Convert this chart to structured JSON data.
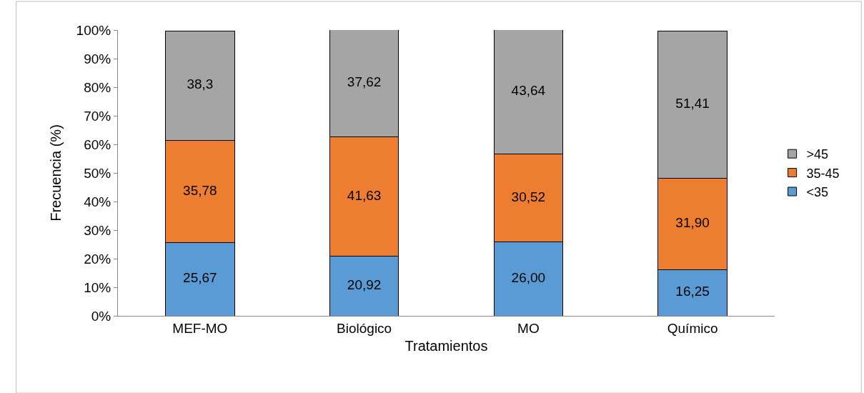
{
  "chart_data": {
    "type": "bar",
    "stacked": true,
    "xlabel": "Tratamientos",
    "ylabel": "Frecuencia (%)",
    "categories": [
      "MEF-MO",
      "Biológico",
      "MO",
      "Químico"
    ],
    "series": [
      {
        "name": "<35",
        "color": "#5b9bd5",
        "values": [
          25.67,
          20.92,
          26.0,
          16.25
        ],
        "value_labels": [
          "25,67",
          "20,92",
          "26,00",
          "16,25"
        ]
      },
      {
        "name": "35-45",
        "color": "#ed7d31",
        "values": [
          35.78,
          41.63,
          30.52,
          31.9
        ],
        "value_labels": [
          "35,78",
          "41,63",
          "30,52",
          "31,90"
        ]
      },
      {
        "name": ">45",
        "color": "#a5a5a5",
        "values": [
          38.3,
          37.62,
          43.64,
          51.41
        ],
        "value_labels": [
          "38,3",
          "37,62",
          "43,64",
          "51,41"
        ]
      }
    ],
    "ylim": [
      0,
      100
    ],
    "yticks": [
      {
        "value": 0,
        "label": "0%"
      },
      {
        "value": 10,
        "label": "10%"
      },
      {
        "value": 20,
        "label": "20%"
      },
      {
        "value": 30,
        "label": "30%"
      },
      {
        "value": 40,
        "label": "40%"
      },
      {
        "value": 50,
        "label": "50%"
      },
      {
        "value": 60,
        "label": "60%"
      },
      {
        "value": 70,
        "label": "70%"
      },
      {
        "value": 80,
        "label": "80%"
      },
      {
        "value": 90,
        "label": "90%"
      },
      {
        "value": 100,
        "label": "100%"
      }
    ],
    "legend": "right"
  }
}
